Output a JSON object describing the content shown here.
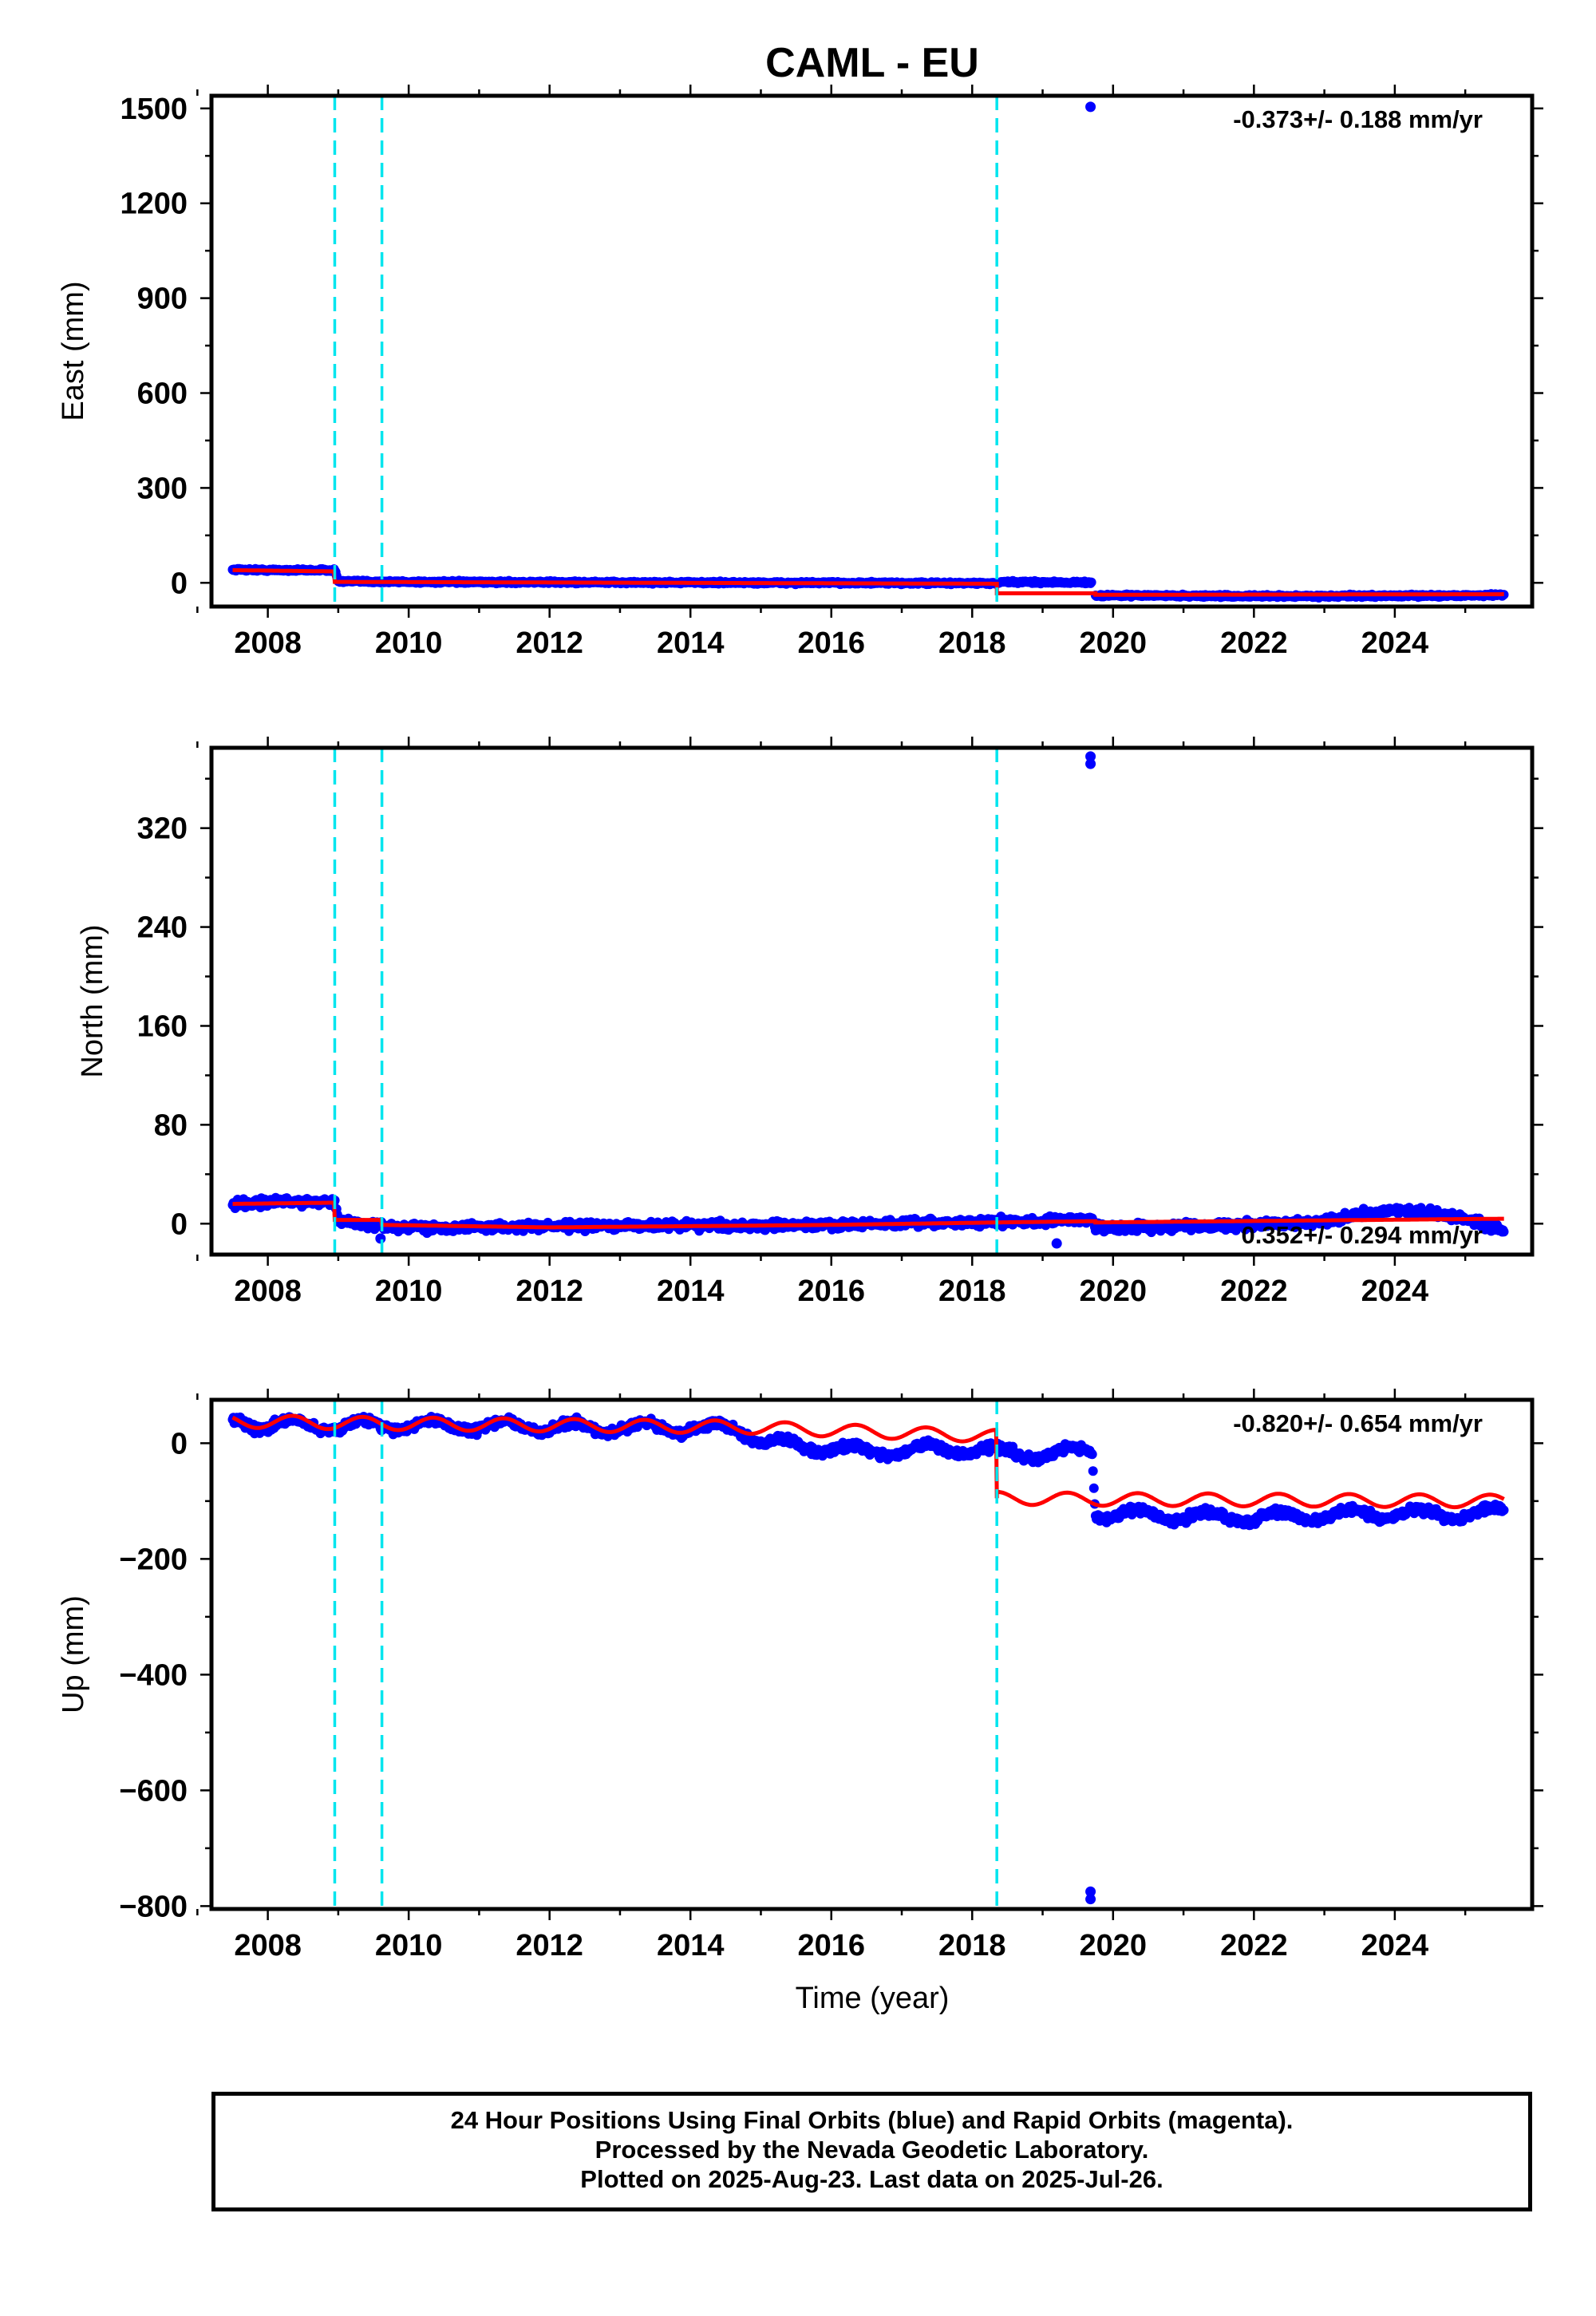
{
  "title": "CAML - EU",
  "colors": {
    "data_points": "#0000ff",
    "model_line": "#ff0000",
    "breaks": "#00e5ee",
    "axis": "#000000"
  },
  "xlabel": "Time (year)",
  "x_ticks": [
    "2008",
    "2010",
    "2012",
    "2014",
    "2016",
    "2018",
    "2020",
    "2022",
    "2024"
  ],
  "footer": {
    "line1": "24 Hour Positions Using Final Orbits (blue) and Rapid Orbits (magenta).",
    "line2": "Processed by the Nevada Geodetic Laboratory.",
    "line3": "Plotted on 2025-Aug-23. Last data on 2025-Jul-26."
  },
  "chart_data": [
    {
      "type": "scatter",
      "panel": "east",
      "ylabel": "East (mm)",
      "rate_label": "-0.373+/- 0.188 mm/yr",
      "xlim": [
        2007.2,
        2025.95
      ],
      "ylim": [
        -75,
        1540
      ],
      "yticks": [
        0,
        300,
        600,
        900,
        1200,
        1500
      ],
      "xticks": [
        2008,
        2010,
        2012,
        2014,
        2016,
        2018,
        2020,
        2022,
        2024
      ],
      "breaks": [
        2008.95,
        2009.62,
        2018.35
      ],
      "outliers": [
        [
          2019.68,
          1505
        ]
      ],
      "data_gap": [
        2019.7,
        2019.75
      ],
      "series": [
        {
          "name": "Final Orbits",
          "style": "points",
          "x": [
            2007.5,
            2008.0,
            2008.5,
            2008.95,
            2009.0,
            2010.0,
            2011.0,
            2012.0,
            2013.0,
            2014.0,
            2015.0,
            2016.0,
            2017.0,
            2018.0,
            2018.35,
            2018.4,
            2019.0,
            2019.7,
            2019.75,
            2020.5,
            2021.0,
            2022.0,
            2023.0,
            2024.0,
            2025.0,
            2025.55
          ],
          "y": [
            42,
            40,
            40,
            40,
            5,
            3,
            2,
            2,
            1,
            1,
            0,
            0,
            -1,
            -1,
            -2,
            2,
            2,
            1,
            -40,
            -40,
            -41,
            -42,
            -42,
            -41,
            -40,
            -38
          ]
        },
        {
          "name": "Model",
          "style": "line",
          "x": [
            2007.5,
            2008.95,
            2008.95,
            2018.35,
            2018.35,
            2019.75,
            2019.75,
            2025.55
          ],
          "y": [
            40,
            36,
            3,
            -3,
            -33,
            -33,
            -38,
            -36
          ]
        }
      ]
    },
    {
      "type": "scatter",
      "panel": "north",
      "ylabel": "North (mm)",
      "rate_label": "0.352+/- 0.294 mm/yr",
      "xlim": [
        2007.2,
        2025.95
      ],
      "ylim": [
        -25,
        385
      ],
      "yticks": [
        0,
        80,
        160,
        240,
        320
      ],
      "xticks": [
        2008,
        2010,
        2012,
        2014,
        2016,
        2018,
        2020,
        2022,
        2024
      ],
      "breaks": [
        2008.95,
        2009.62,
        2018.35
      ],
      "outliers": [
        [
          2019.68,
          378
        ],
        [
          2019.68,
          372
        ],
        [
          2009.6,
          -12
        ],
        [
          2019.2,
          -16
        ]
      ],
      "series": [
        {
          "name": "Final Orbits",
          "style": "points",
          "x": [
            2007.5,
            2008.0,
            2008.5,
            2008.95,
            2009.0,
            2009.62,
            2010.0,
            2011.0,
            2012.0,
            2013.0,
            2014.0,
            2015.0,
            2016.0,
            2017.0,
            2018.0,
            2019.0,
            2019.7,
            2019.75,
            2020.5,
            2021.0,
            2022.0,
            2023.0,
            2023.5,
            2024.0,
            2024.5,
            2025.0,
            2025.55
          ],
          "y": [
            16,
            17,
            18,
            18,
            2,
            -2,
            -3,
            -3,
            -2,
            -2,
            -1,
            -2,
            -1,
            0,
            1,
            2,
            4,
            -3,
            -3,
            -2,
            -1,
            2,
            8,
            10,
            9,
            4,
            -5
          ]
        },
        {
          "name": "Model",
          "style": "line",
          "x": [
            2007.5,
            2008.95,
            2008.95,
            2009.62,
            2009.62,
            2012.0,
            2016.0,
            2018.35,
            2019.75,
            2019.75,
            2025.55
          ],
          "y": [
            16,
            17,
            3,
            3,
            -1,
            -3,
            -1,
            1,
            2,
            1,
            4
          ]
        }
      ]
    },
    {
      "type": "scatter",
      "panel": "up",
      "ylabel": "Up (mm)",
      "rate_label": "-0.820+/- 0.654 mm/yr",
      "xlim": [
        2007.2,
        2025.95
      ],
      "ylim": [
        -805,
        75
      ],
      "yticks": [
        -800,
        -600,
        -400,
        -200,
        0
      ],
      "xticks": [
        2008,
        2010,
        2012,
        2014,
        2016,
        2018,
        2020,
        2022,
        2024
      ],
      "breaks": [
        2008.95,
        2009.62,
        2018.35
      ],
      "outliers": [
        [
          2019.68,
          -775
        ],
        [
          2019.68,
          -788
        ]
      ],
      "series": [
        {
          "name": "Final Orbits",
          "style": "points",
          "x": [
            2007.5,
            2008.0,
            2009.0,
            2010.0,
            2011.0,
            2012.0,
            2013.0,
            2014.0,
            2014.7,
            2015.0,
            2015.5,
            2016.0,
            2016.5,
            2017.0,
            2017.5,
            2018.0,
            2018.35,
            2019.0,
            2019.7,
            2019.75,
            2020.5,
            2021.0,
            2022.0,
            2023.0,
            2024.0,
            2025.0,
            2025.55
          ],
          "y": [
            38,
            32,
            30,
            32,
            30,
            28,
            26,
            26,
            24,
            5,
            -5,
            -8,
            -15,
            -12,
            -10,
            -12,
            -15,
            -20,
            -10,
            -120,
            -125,
            -126,
            -128,
            -125,
            -122,
            -122,
            -120
          ]
        },
        {
          "name": "Model",
          "style": "line",
          "x": [
            2007.5,
            2009.62,
            2014.7,
            2018.35,
            2018.35,
            2019.75,
            2025.55
          ],
          "y": [
            38,
            34,
            28,
            12,
            -95,
            -97,
            -100
          ]
        }
      ]
    }
  ]
}
